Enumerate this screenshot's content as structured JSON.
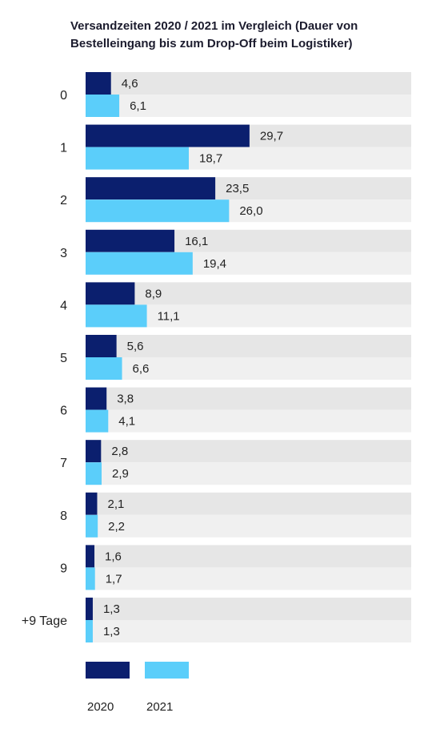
{
  "chart_data": {
    "type": "bar",
    "orientation": "horizontal",
    "title": "Versandzeiten 2020 / 2021 im Vergleich (Dauer von Bestelleingang bis zum Drop-Off beim Logistiker)",
    "categories": [
      "0",
      "1",
      "2",
      "3",
      "4",
      "5",
      "6",
      "7",
      "8",
      "9",
      "+9 Tage"
    ],
    "series": [
      {
        "name": "2020",
        "color": "#0b1f6e",
        "values": [
          4.6,
          29.7,
          23.5,
          16.1,
          8.9,
          5.6,
          3.8,
          2.8,
          2.1,
          1.6,
          1.3
        ],
        "labels": [
          "4,6",
          "29,7",
          "23,5",
          "16,1",
          "8,9",
          "5,6",
          "3,8",
          "2,8",
          "2,1",
          "1,6",
          "1,3"
        ]
      },
      {
        "name": "2021",
        "color": "#5bcefa",
        "values": [
          6.1,
          18.7,
          26.0,
          19.4,
          11.1,
          6.6,
          4.1,
          2.9,
          2.2,
          1.7,
          1.3
        ],
        "labels": [
          "6,1",
          "18,7",
          "26,0",
          "19,4",
          "11,1",
          "6,6",
          "4,1",
          "2,9",
          "2,2",
          "1,7",
          "1,3"
        ]
      }
    ],
    "xlim": [
      0,
      59
    ],
    "background_bar_colors": [
      "#e6e6e6",
      "#f0f0f0"
    ],
    "legend_position": "bottom-left",
    "grid": false
  }
}
